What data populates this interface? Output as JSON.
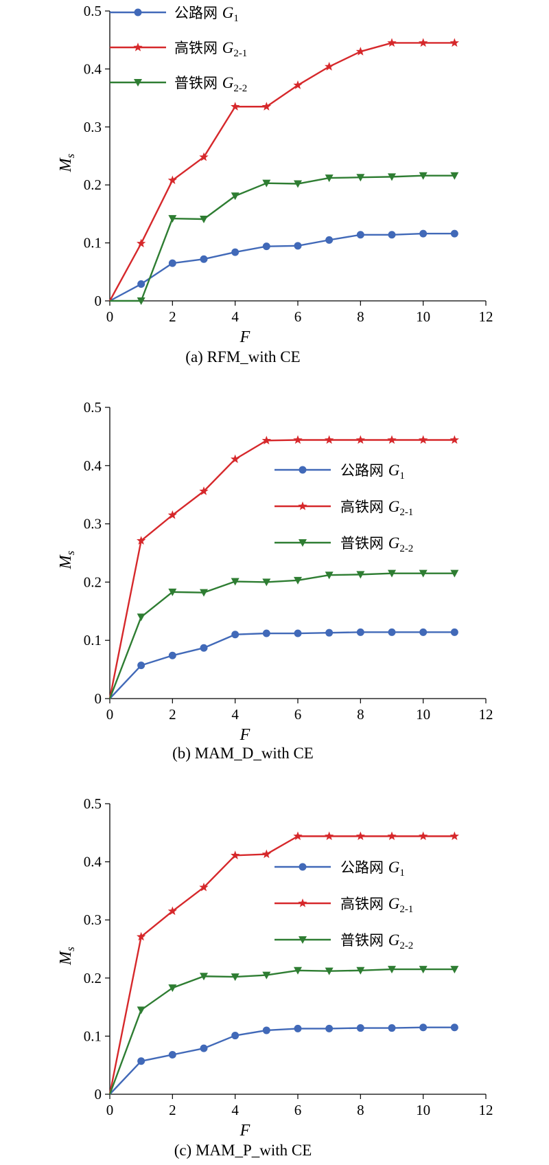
{
  "chart_data": [
    {
      "type": "line",
      "panel": "a",
      "caption": "(a) RFM_with CE",
      "xlabel": "F",
      "ylabel": "Ms",
      "xlim": [
        0,
        12
      ],
      "ylim": [
        0,
        0.5
      ],
      "xticks": [
        "0",
        "2",
        "4",
        "6",
        "8",
        "10",
        "12"
      ],
      "yticks": [
        "0",
        "0.1",
        "0.2",
        "0.3",
        "0.4",
        "0.5"
      ],
      "grid": false,
      "legend_position": "top-left",
      "series": [
        {
          "name": "公路网",
          "symbol": "G",
          "sub": "1",
          "color": "#4169b8",
          "marker": "circle",
          "x": [
            0,
            1,
            2,
            3,
            4,
            5,
            6,
            7,
            8,
            9,
            10,
            11
          ],
          "y": [
            0,
            0.029,
            0.065,
            0.072,
            0.084,
            0.094,
            0.095,
            0.105,
            0.114,
            0.114,
            0.116,
            0.116
          ]
        },
        {
          "name": "高铁网",
          "symbol": "G",
          "sub": "2-1",
          "color": "#d6282b",
          "marker": "star",
          "x": [
            0,
            1,
            2,
            3,
            4,
            5,
            6,
            7,
            8,
            9,
            10,
            11
          ],
          "y": [
            0,
            0.099,
            0.208,
            0.248,
            0.335,
            0.335,
            0.372,
            0.404,
            0.43,
            0.445,
            0.445,
            0.445
          ]
        },
        {
          "name": "普铁网",
          "symbol": "G",
          "sub": "2-2",
          "color": "#2e7d32",
          "marker": "triangle-down",
          "x": [
            0,
            1,
            2,
            3,
            4,
            5,
            6,
            7,
            8,
            9,
            10,
            11
          ],
          "y": [
            0,
            0,
            0.142,
            0.141,
            0.181,
            0.203,
            0.202,
            0.212,
            0.213,
            0.214,
            0.216,
            0.216
          ]
        }
      ]
    },
    {
      "type": "line",
      "panel": "b",
      "caption": "(b) MAM_D_with CE",
      "xlabel": "F",
      "ylabel": "Ms",
      "xlim": [
        0,
        12
      ],
      "ylim": [
        0,
        0.5
      ],
      "xticks": [
        "0",
        "2",
        "4",
        "6",
        "8",
        "10",
        "12"
      ],
      "yticks": [
        "0",
        "0.1",
        "0.2",
        "0.3",
        "0.4",
        "0.5"
      ],
      "grid": false,
      "legend_position": "center-right",
      "series": [
        {
          "name": "公路网",
          "symbol": "G",
          "sub": "1",
          "color": "#4169b8",
          "marker": "circle",
          "x": [
            0,
            1,
            2,
            3,
            4,
            5,
            6,
            7,
            8,
            9,
            10,
            11
          ],
          "y": [
            0,
            0.057,
            0.074,
            0.087,
            0.11,
            0.112,
            0.112,
            0.113,
            0.114,
            0.114,
            0.114,
            0.114
          ]
        },
        {
          "name": "高铁网",
          "symbol": "G",
          "sub": "2-1",
          "color": "#d6282b",
          "marker": "star",
          "x": [
            0,
            1,
            2,
            3,
            4,
            5,
            6,
            7,
            8,
            9,
            10,
            11
          ],
          "y": [
            0,
            0.271,
            0.315,
            0.356,
            0.411,
            0.443,
            0.444,
            0.444,
            0.444,
            0.444,
            0.444,
            0.444
          ]
        },
        {
          "name": "普铁网",
          "symbol": "G",
          "sub": "2-2",
          "color": "#2e7d32",
          "marker": "triangle-down",
          "x": [
            0,
            1,
            2,
            3,
            4,
            5,
            6,
            7,
            8,
            9,
            10,
            11
          ],
          "y": [
            0,
            0.14,
            0.183,
            0.182,
            0.201,
            0.2,
            0.203,
            0.212,
            0.213,
            0.215,
            0.215,
            0.215
          ]
        }
      ]
    },
    {
      "type": "line",
      "panel": "c",
      "caption": "(c) MAM_P_with CE",
      "xlabel": "F",
      "ylabel": "Ms",
      "xlim": [
        0,
        12
      ],
      "ylim": [
        0,
        0.5
      ],
      "xticks": [
        "0",
        "2",
        "4",
        "6",
        "8",
        "10",
        "12"
      ],
      "yticks": [
        "0",
        "0.1",
        "0.2",
        "0.3",
        "0.4",
        "0.5"
      ],
      "grid": false,
      "legend_position": "center-right",
      "series": [
        {
          "name": "公路网",
          "symbol": "G",
          "sub": "1",
          "color": "#4169b8",
          "marker": "circle",
          "x": [
            0,
            1,
            2,
            3,
            4,
            5,
            6,
            7,
            8,
            9,
            10,
            11
          ],
          "y": [
            0,
            0.057,
            0.068,
            0.079,
            0.101,
            0.11,
            0.113,
            0.113,
            0.114,
            0.114,
            0.115,
            0.115
          ]
        },
        {
          "name": "高铁网",
          "symbol": "G",
          "sub": "2-1",
          "color": "#d6282b",
          "marker": "star",
          "x": [
            0,
            1,
            2,
            3,
            4,
            5,
            6,
            7,
            8,
            9,
            10,
            11
          ],
          "y": [
            0,
            0.271,
            0.315,
            0.356,
            0.411,
            0.413,
            0.444,
            0.444,
            0.444,
            0.444,
            0.444,
            0.444
          ]
        },
        {
          "name": "普铁网",
          "symbol": "G",
          "sub": "2-2",
          "color": "#2e7d32",
          "marker": "triangle-down",
          "x": [
            0,
            1,
            2,
            3,
            4,
            5,
            6,
            7,
            8,
            9,
            10,
            11
          ],
          "y": [
            0,
            0.145,
            0.183,
            0.203,
            0.202,
            0.205,
            0.213,
            0.212,
            0.213,
            0.215,
            0.215,
            0.215
          ]
        }
      ]
    }
  ]
}
